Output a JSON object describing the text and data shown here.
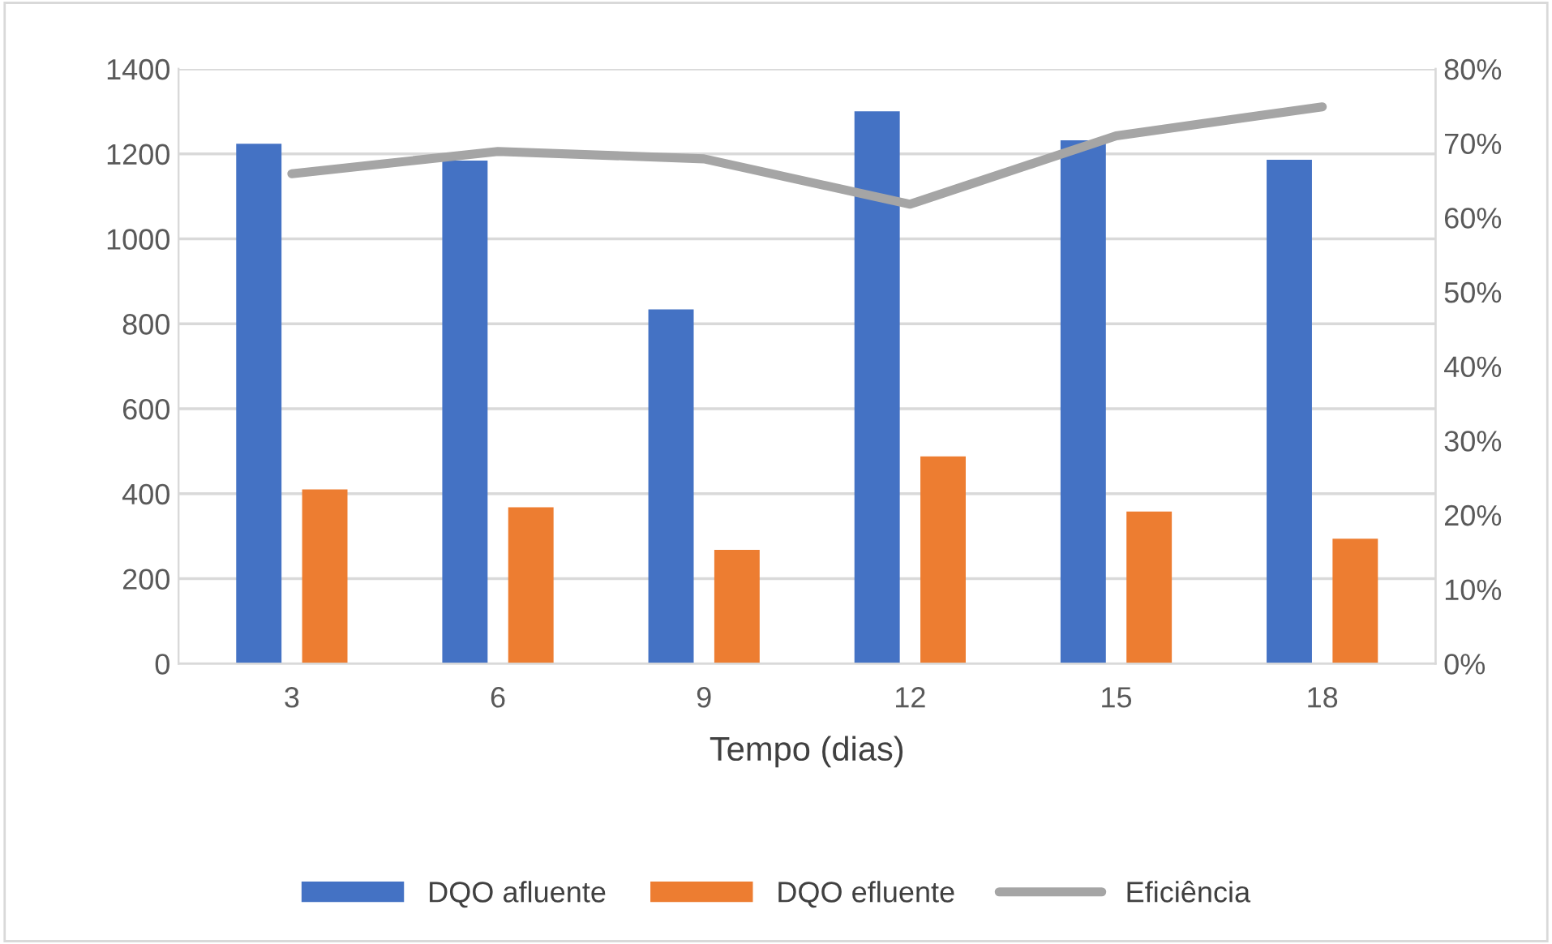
{
  "chart_data": {
    "type": "bar",
    "xlabel": "Tempo (dias)",
    "categories": [
      "3",
      "6",
      "9",
      "12",
      "15",
      "18"
    ],
    "series": [
      {
        "name": "DQO afluente",
        "color": "#4472c4",
        "values": [
          1224,
          1184,
          834,
          1300,
          1232,
          1186
        ]
      },
      {
        "name": "DQO efluente",
        "color": "#ed7d31",
        "values": [
          410,
          368,
          268,
          488,
          358,
          294
        ]
      },
      {
        "name": "Eficiência",
        "type": "line",
        "axis": "y2",
        "color": "#a5a5a5",
        "values": [
          65.9,
          68.9,
          67.9,
          61.8,
          71,
          74.9
        ]
      }
    ],
    "ylim": [
      0,
      1400
    ],
    "yticks": [
      0,
      200,
      400,
      600,
      800,
      1000,
      1200,
      1400
    ],
    "y2lim": [
      0,
      80
    ],
    "y2ticks": [
      {
        "value": 0,
        "label": "0%"
      },
      {
        "value": 10,
        "label": "10%"
      },
      {
        "value": 20,
        "label": "20%"
      },
      {
        "value": 30,
        "label": "30%"
      },
      {
        "value": 40,
        "label": "40%"
      },
      {
        "value": 50,
        "label": "50%"
      },
      {
        "value": 60,
        "label": "60%"
      },
      {
        "value": 70,
        "label": "70%"
      },
      {
        "value": 80,
        "label": "80%"
      }
    ],
    "grid": "y",
    "legend": "bottom",
    "marker": "none",
    "line_style": "solid"
  }
}
